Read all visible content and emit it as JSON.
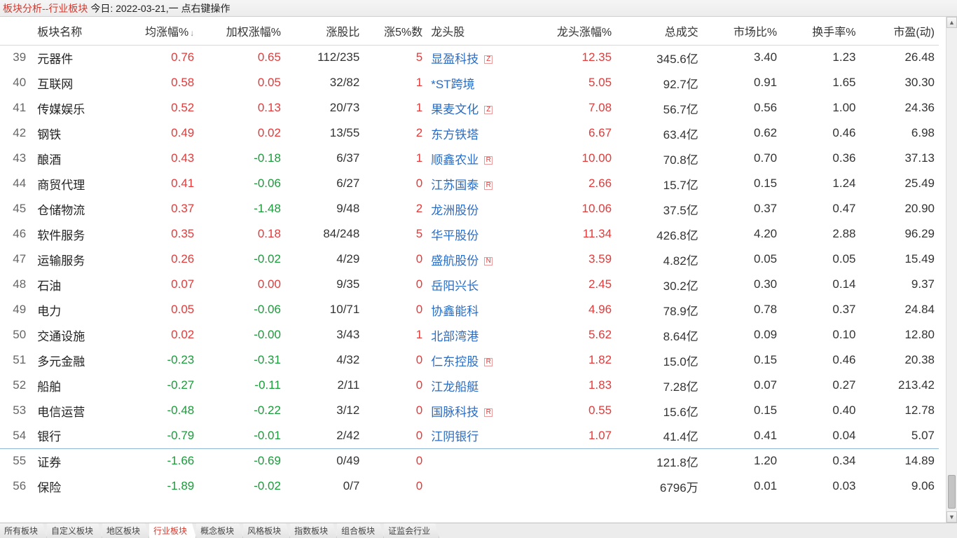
{
  "header": {
    "title_red": "板块分析--行业板块",
    "title_black": "今日: 2022-03-21,一  点右键操作"
  },
  "colors": {
    "up": "#e33a3a",
    "down": "#1a9c3a",
    "blue": "#2a6cc4",
    "text": "#333333",
    "header_bg": "#ececec",
    "row_highlight_border": "#8fb7d6"
  },
  "table": {
    "columns": [
      {
        "key": "idx",
        "label": "",
        "align": "right"
      },
      {
        "key": "name",
        "label": "板块名称",
        "align": "left"
      },
      {
        "key": "avg",
        "label": "均涨幅%",
        "align": "right",
        "sort": true
      },
      {
        "key": "wavg",
        "label": "加权涨幅%",
        "align": "right"
      },
      {
        "key": "ratio",
        "label": "涨股比",
        "align": "right"
      },
      {
        "key": "n5",
        "label": "涨5%数",
        "align": "right"
      },
      {
        "key": "leader",
        "label": "龙头股",
        "align": "left"
      },
      {
        "key": "lchg",
        "label": "龙头涨幅%",
        "align": "right"
      },
      {
        "key": "vol",
        "label": "总成交",
        "align": "right"
      },
      {
        "key": "mkt",
        "label": "市场比%",
        "align": "right"
      },
      {
        "key": "turn",
        "label": "换手率%",
        "align": "right"
      },
      {
        "key": "pe",
        "label": "市盈(动)",
        "align": "right"
      }
    ],
    "rows": [
      {
        "idx": "39",
        "name": "元器件",
        "avg": "0.76",
        "avg_dir": "up",
        "wavg": "0.65",
        "wavg_dir": "up",
        "ratio": "112/235",
        "n5": "5",
        "leader": "显盈科技",
        "badge": "Z",
        "lchg": "12.35",
        "vol": "345.6亿",
        "mkt": "3.40",
        "turn": "1.23",
        "pe": "26.48"
      },
      {
        "idx": "40",
        "name": "互联网",
        "avg": "0.58",
        "avg_dir": "up",
        "wavg": "0.05",
        "wavg_dir": "up",
        "ratio": "32/82",
        "n5": "1",
        "leader": "*ST跨境",
        "badge": "",
        "lchg": "5.05",
        "vol": "92.7亿",
        "mkt": "0.91",
        "turn": "1.65",
        "pe": "30.30"
      },
      {
        "idx": "41",
        "name": "传媒娱乐",
        "avg": "0.52",
        "avg_dir": "up",
        "wavg": "0.13",
        "wavg_dir": "up",
        "ratio": "20/73",
        "n5": "1",
        "leader": "果麦文化",
        "badge": "Z",
        "lchg": "7.08",
        "vol": "56.7亿",
        "mkt": "0.56",
        "turn": "1.00",
        "pe": "24.36"
      },
      {
        "idx": "42",
        "name": "钢铁",
        "avg": "0.49",
        "avg_dir": "up",
        "wavg": "0.02",
        "wavg_dir": "up",
        "ratio": "13/55",
        "n5": "2",
        "leader": "东方铁塔",
        "badge": "",
        "lchg": "6.67",
        "vol": "63.4亿",
        "mkt": "0.62",
        "turn": "0.46",
        "pe": "6.98"
      },
      {
        "idx": "43",
        "name": "酿酒",
        "avg": "0.43",
        "avg_dir": "up",
        "wavg": "-0.18",
        "wavg_dir": "down",
        "ratio": "6/37",
        "n5": "1",
        "leader": "顺鑫农业",
        "badge": "R",
        "lchg": "10.00",
        "vol": "70.8亿",
        "mkt": "0.70",
        "turn": "0.36",
        "pe": "37.13"
      },
      {
        "idx": "44",
        "name": "商贸代理",
        "avg": "0.41",
        "avg_dir": "up",
        "wavg": "-0.06",
        "wavg_dir": "down",
        "ratio": "6/27",
        "n5": "0",
        "leader": "江苏国泰",
        "badge": "R",
        "lchg": "2.66",
        "vol": "15.7亿",
        "mkt": "0.15",
        "turn": "1.24",
        "pe": "25.49"
      },
      {
        "idx": "45",
        "name": "仓储物流",
        "avg": "0.37",
        "avg_dir": "up",
        "wavg": "-1.48",
        "wavg_dir": "down",
        "ratio": "9/48",
        "n5": "2",
        "leader": "龙洲股份",
        "badge": "",
        "lchg": "10.06",
        "vol": "37.5亿",
        "mkt": "0.37",
        "turn": "0.47",
        "pe": "20.90"
      },
      {
        "idx": "46",
        "name": "软件服务",
        "avg": "0.35",
        "avg_dir": "up",
        "wavg": "0.18",
        "wavg_dir": "up",
        "ratio": "84/248",
        "n5": "5",
        "leader": "华平股份",
        "badge": "",
        "lchg": "11.34",
        "vol": "426.8亿",
        "mkt": "4.20",
        "turn": "2.88",
        "pe": "96.29"
      },
      {
        "idx": "47",
        "name": "运输服务",
        "avg": "0.26",
        "avg_dir": "up",
        "wavg": "-0.02",
        "wavg_dir": "down",
        "ratio": "4/29",
        "n5": "0",
        "leader": "盛航股份",
        "badge": "N",
        "lchg": "3.59",
        "vol": "4.82亿",
        "mkt": "0.05",
        "turn": "0.05",
        "pe": "15.49"
      },
      {
        "idx": "48",
        "name": "石油",
        "avg": "0.07",
        "avg_dir": "up",
        "wavg": "0.00",
        "wavg_dir": "up",
        "ratio": "9/35",
        "n5": "0",
        "leader": "岳阳兴长",
        "badge": "",
        "lchg": "2.45",
        "vol": "30.2亿",
        "mkt": "0.30",
        "turn": "0.14",
        "pe": "9.37"
      },
      {
        "idx": "49",
        "name": "电力",
        "avg": "0.05",
        "avg_dir": "up",
        "wavg": "-0.06",
        "wavg_dir": "down",
        "ratio": "10/71",
        "n5": "0",
        "leader": "协鑫能科",
        "badge": "",
        "lchg": "4.96",
        "vol": "78.9亿",
        "mkt": "0.78",
        "turn": "0.37",
        "pe": "24.84"
      },
      {
        "idx": "50",
        "name": "交通设施",
        "avg": "0.02",
        "avg_dir": "up",
        "wavg": "-0.00",
        "wavg_dir": "down",
        "ratio": "3/43",
        "n5": "1",
        "leader": "北部湾港",
        "badge": "",
        "lchg": "5.62",
        "vol": "8.64亿",
        "mkt": "0.09",
        "turn": "0.10",
        "pe": "12.80"
      },
      {
        "idx": "51",
        "name": "多元金融",
        "avg": "-0.23",
        "avg_dir": "down",
        "wavg": "-0.31",
        "wavg_dir": "down",
        "ratio": "4/32",
        "n5": "0",
        "leader": "仁东控股",
        "badge": "R",
        "lchg": "1.82",
        "vol": "15.0亿",
        "mkt": "0.15",
        "turn": "0.46",
        "pe": "20.38"
      },
      {
        "idx": "52",
        "name": "船舶",
        "avg": "-0.27",
        "avg_dir": "down",
        "wavg": "-0.11",
        "wavg_dir": "down",
        "ratio": "2/11",
        "n5": "0",
        "leader": "江龙船艇",
        "badge": "",
        "lchg": "1.83",
        "vol": "7.28亿",
        "mkt": "0.07",
        "turn": "0.27",
        "pe": "213.42"
      },
      {
        "idx": "53",
        "name": "电信运营",
        "avg": "-0.48",
        "avg_dir": "down",
        "wavg": "-0.22",
        "wavg_dir": "down",
        "ratio": "3/12",
        "n5": "0",
        "leader": "国脉科技",
        "badge": "R",
        "lchg": "0.55",
        "vol": "15.6亿",
        "mkt": "0.15",
        "turn": "0.40",
        "pe": "12.78"
      },
      {
        "idx": "54",
        "name": "银行",
        "avg": "-0.79",
        "avg_dir": "down",
        "wavg": "-0.01",
        "wavg_dir": "down",
        "ratio": "2/42",
        "n5": "0",
        "leader": "江阴银行",
        "badge": "",
        "lchg": "1.07",
        "vol": "41.4亿",
        "mkt": "0.41",
        "turn": "0.04",
        "pe": "5.07",
        "hl": true
      },
      {
        "idx": "55",
        "name": "证券",
        "avg": "-1.66",
        "avg_dir": "down",
        "wavg": "-0.69",
        "wavg_dir": "down",
        "ratio": "0/49",
        "n5": "0",
        "leader": "",
        "badge": "",
        "lchg": "",
        "vol": "121.8亿",
        "mkt": "1.20",
        "turn": "0.34",
        "pe": "14.89"
      },
      {
        "idx": "56",
        "name": "保险",
        "avg": "-1.89",
        "avg_dir": "down",
        "wavg": "-0.02",
        "wavg_dir": "down",
        "ratio": "0/7",
        "n5": "0",
        "leader": "",
        "badge": "",
        "lchg": "",
        "vol": "6796万",
        "mkt": "0.01",
        "turn": "0.03",
        "pe": "9.06"
      }
    ]
  },
  "bottom_tabs": {
    "items": [
      "所有板块",
      "自定义板块",
      "地区板块",
      "行业板块",
      "概念板块",
      "风格板块",
      "指数板块",
      "组合板块",
      "证监会行业"
    ],
    "active_index": 3
  }
}
